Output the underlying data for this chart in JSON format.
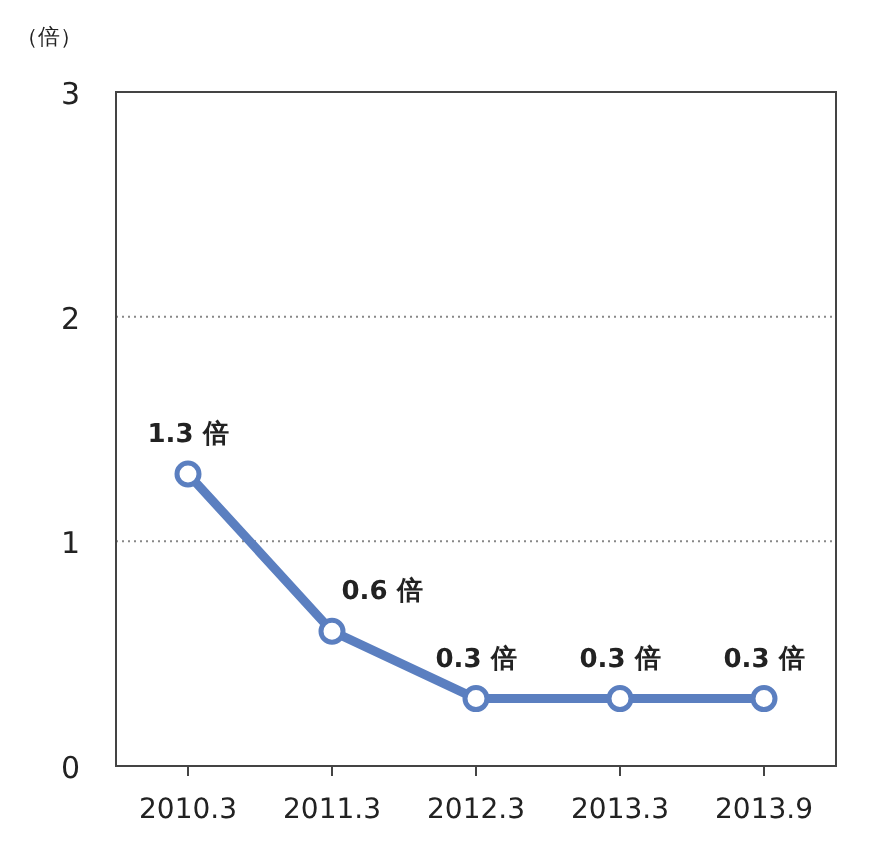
{
  "chart_data": {
    "type": "line",
    "ylabel": "（倍）",
    "categories": [
      "2010.3",
      "2011.3",
      "2012.3",
      "2013.3",
      "2013.9"
    ],
    "series": [
      {
        "color": "#5b7fc0",
        "values": [
          1.3,
          0.6,
          0.3,
          0.3,
          0.3
        ],
        "value_labels": [
          "1.3 倍",
          "0.6 倍",
          "0.3 倍",
          "0.3 倍",
          "0.3 倍"
        ]
      }
    ],
    "ylim": [
      0,
      3
    ],
    "yticks": [
      0,
      1,
      2,
      3
    ],
    "grid": "y",
    "marker": "circle",
    "line_style": "solid"
  }
}
